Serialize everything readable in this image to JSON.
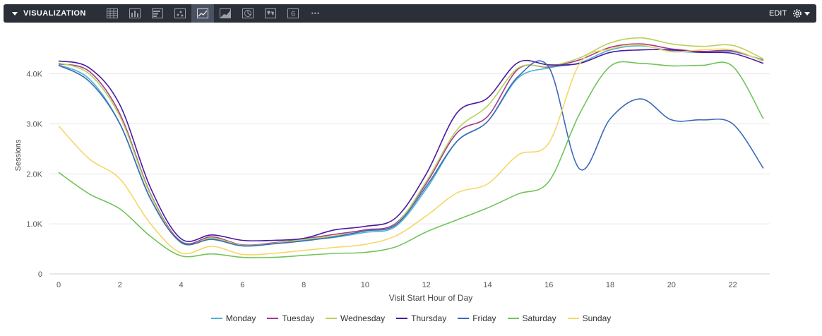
{
  "toolbar": {
    "title": "VISUALIZATION",
    "edit_label": "EDIT",
    "icons": [
      "table-icon",
      "column-chart-icon",
      "bar-chart-icon",
      "scatter-icon",
      "line-chart-icon",
      "area-chart-icon",
      "pie-chart-icon",
      "map-icon",
      "single-value-icon",
      "more-icon"
    ],
    "active_icon": "line-chart-icon",
    "single_value_glyph": "6",
    "more_glyph": "•••"
  },
  "chart_data": {
    "type": "line",
    "xlabel": "Visit Start Hour of Day",
    "ylabel": "Sessions",
    "x": [
      0,
      1,
      2,
      3,
      4,
      5,
      6,
      7,
      8,
      9,
      10,
      11,
      12,
      13,
      14,
      15,
      16,
      17,
      18,
      19,
      20,
      21,
      22,
      23
    ],
    "xticks": [
      0,
      2,
      4,
      6,
      8,
      10,
      12,
      14,
      16,
      18,
      20,
      22
    ],
    "yticks": [
      0,
      1000,
      2000,
      3000,
      4000
    ],
    "ytick_labels": [
      "0",
      "1.0K",
      "2.0K",
      "3.0K",
      "4.0K"
    ],
    "ylim": [
      0,
      4800
    ],
    "grid": "horizontal",
    "legend_position": "bottom",
    "series": [
      {
        "name": "Monday",
        "color": "#4db3d6",
        "values": [
          4180,
          3900,
          3000,
          1500,
          650,
          700,
          560,
          600,
          680,
          730,
          830,
          950,
          1700,
          2650,
          3050,
          3920,
          4120,
          4220,
          4480,
          4560,
          4460,
          4430,
          4440,
          4280
        ]
      },
      {
        "name": "Tuesday",
        "color": "#a23b8e",
        "values": [
          4200,
          4050,
          3200,
          1600,
          640,
          740,
          580,
          620,
          700,
          790,
          880,
          1010,
          1810,
          2820,
          3150,
          4100,
          4140,
          4280,
          4530,
          4600,
          4500,
          4450,
          4460,
          4260
        ]
      },
      {
        "name": "Wednesday",
        "color": "#b9d25a",
        "values": [
          4220,
          4000,
          3150,
          1580,
          620,
          720,
          570,
          610,
          690,
          760,
          860,
          990,
          1850,
          2880,
          3360,
          4120,
          4150,
          4320,
          4620,
          4720,
          4600,
          4550,
          4570,
          4300
        ]
      },
      {
        "name": "Thursday",
        "color": "#4a1aa0",
        "values": [
          4260,
          4120,
          3380,
          1720,
          700,
          780,
          670,
          670,
          710,
          880,
          950,
          1120,
          2000,
          3220,
          3520,
          4230,
          4180,
          4210,
          4430,
          4480,
          4480,
          4430,
          4410,
          4210
        ]
      },
      {
        "name": "Friday",
        "color": "#3b6ab8",
        "values": [
          4170,
          3850,
          3000,
          1500,
          630,
          690,
          560,
          600,
          660,
          740,
          860,
          980,
          1750,
          2650,
          3050,
          3950,
          4130,
          2100,
          3100,
          3500,
          3080,
          3080,
          3000,
          2110
        ]
      },
      {
        "name": "Saturday",
        "color": "#72c45a",
        "values": [
          2030,
          1600,
          1300,
          750,
          360,
          400,
          330,
          330,
          370,
          410,
          430,
          540,
          840,
          1080,
          1320,
          1600,
          1850,
          3200,
          4150,
          4210,
          4160,
          4170,
          4150,
          3100
        ]
      },
      {
        "name": "Sunday",
        "color": "#f4d867",
        "values": [
          2960,
          2300,
          1900,
          1000,
          420,
          550,
          390,
          410,
          470,
          530,
          590,
          760,
          1160,
          1620,
          1800,
          2380,
          2620,
          4200,
          4500,
          4580,
          4440,
          4480,
          4480,
          4250
        ]
      }
    ]
  }
}
